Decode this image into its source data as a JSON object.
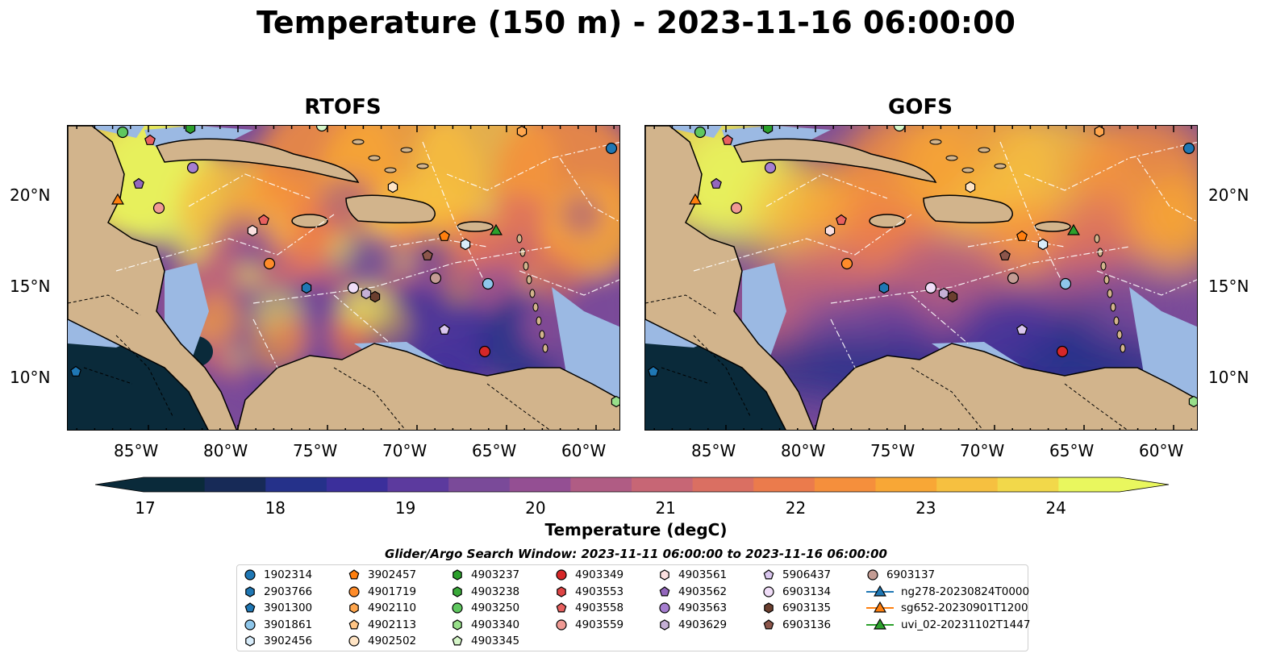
{
  "title": "Temperature (150 m) - 2023-11-16 06:00:00",
  "panels": [
    {
      "title": "RTOFS",
      "variant": "rtofs"
    },
    {
      "title": "GOFS",
      "variant": "gofs"
    }
  ],
  "lon_ticks": [
    "85°W",
    "80°W",
    "75°W",
    "70°W",
    "65°W",
    "60°W"
  ],
  "lat_ticks": [
    "20°N",
    "15°N",
    "10°N"
  ],
  "colorbar": {
    "label": "Temperature (degC)",
    "ticks": [
      "17",
      "18",
      "19",
      "20",
      "21",
      "22",
      "23",
      "24"
    ],
    "range": [
      16.75,
      24.75
    ],
    "colors": [
      "#0a2a3a",
      "#172a57",
      "#25318a",
      "#3b2f9b",
      "#5c3a9e",
      "#7a4a99",
      "#944f93",
      "#b05c84",
      "#c76675",
      "#da6f62",
      "#eb7b4c",
      "#f58f3c",
      "#f8a736",
      "#f6c040",
      "#f2d84a",
      "#e9f75e"
    ]
  },
  "legend": {
    "title": "Glider/Argo Search Window: 2023-11-11 06:00:00 to 2023-11-16 06:00:00",
    "items": [
      {
        "label": "1902314",
        "marker": "circle",
        "color": "#1f77b4"
      },
      {
        "label": "2903766",
        "marker": "hexagon",
        "color": "#1f77b4"
      },
      {
        "label": "3901300",
        "marker": "pentagon",
        "color": "#1f77b4"
      },
      {
        "label": "3901861",
        "marker": "circle",
        "color": "#8ec6ea"
      },
      {
        "label": "3902456",
        "marker": "hexagon",
        "color": "#d8ecfa"
      },
      {
        "label": "3902457",
        "marker": "pentagon",
        "color": "#ff7f0e"
      },
      {
        "label": "4901719",
        "marker": "circle",
        "color": "#ff8c2a"
      },
      {
        "label": "4902110",
        "marker": "hexagon",
        "color": "#ffa64d"
      },
      {
        "label": "4902113",
        "marker": "pentagon",
        "color": "#ffc585"
      },
      {
        "label": "4902502",
        "marker": "circle",
        "color": "#ffe4c4"
      },
      {
        "label": "4903237",
        "marker": "hexagon",
        "color": "#2ca02c"
      },
      {
        "label": "4903238",
        "marker": "hexagon",
        "color": "#3aaa3a"
      },
      {
        "label": "4903250",
        "marker": "circle",
        "color": "#5fc75f"
      },
      {
        "label": "4903340",
        "marker": "hexagon",
        "color": "#98df8a"
      },
      {
        "label": "4903345",
        "marker": "pentagon",
        "color": "#d5f5c8"
      },
      {
        "label": "4903349",
        "marker": "circle",
        "color": "#d62728"
      },
      {
        "label": "4903553",
        "marker": "hexagon",
        "color": "#de4545"
      },
      {
        "label": "4903558",
        "marker": "pentagon",
        "color": "#e8605f"
      },
      {
        "label": "4903559",
        "marker": "circle",
        "color": "#f09a94"
      },
      {
        "label": "4903561",
        "marker": "hexagon",
        "color": "#fbe0e0"
      },
      {
        "label": "4903562",
        "marker": "pentagon",
        "color": "#9467bd"
      },
      {
        "label": "4903563",
        "marker": "circle",
        "color": "#a67ed0"
      },
      {
        "label": "4903629",
        "marker": "hexagon",
        "color": "#c5b0d5"
      },
      {
        "label": "5906437",
        "marker": "pentagon",
        "color": "#d9c6ee"
      },
      {
        "label": "6903134",
        "marker": "circle",
        "color": "#f0ddf8"
      },
      {
        "label": "6903135",
        "marker": "hexagon",
        "color": "#6b3f2f"
      },
      {
        "label": "6903136",
        "marker": "pentagon",
        "color": "#8c564b"
      },
      {
        "label": "6903137",
        "marker": "circle",
        "color": "#c49c94"
      },
      {
        "label": "ng278-20230824T0000",
        "marker": "triangle-line",
        "color": "#1f77b4"
      },
      {
        "label": "sg652-20230901T1200",
        "marker": "triangle-line",
        "color": "#ff7f0e"
      },
      {
        "label": "uvi_02-20231102T1447",
        "marker": "triangle-line",
        "color": "#2ca02c"
      }
    ]
  }
}
